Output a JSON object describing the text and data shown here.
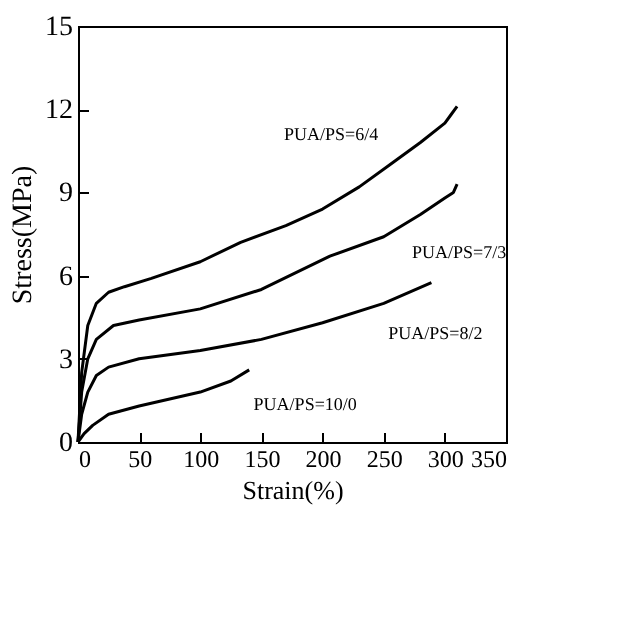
{
  "chart_data": {
    "type": "line",
    "xlabel": "Strain(%)",
    "ylabel": "Stress(MPa)",
    "xlim": [
      0,
      350
    ],
    "ylim": [
      0,
      15
    ],
    "xticks": [
      0,
      50,
      100,
      150,
      200,
      250,
      300,
      350
    ],
    "yticks": [
      0,
      3,
      6,
      9,
      12,
      15
    ],
    "grid": false,
    "legend": false,
    "marker": "none",
    "line_style": "solid",
    "series": [
      {
        "name": "PUA/PS=6/4",
        "color": "#000000",
        "x": [
          0,
          3,
          8,
          15,
          25,
          38,
          60,
          100,
          133,
          170,
          200,
          230,
          255,
          280,
          300,
          305,
          310
        ],
        "values": [
          0,
          2.5,
          4.2,
          5.0,
          5.4,
          5.6,
          5.9,
          6.5,
          7.2,
          7.8,
          8.4,
          9.2,
          10,
          10.8,
          11.5,
          11.8,
          12.1
        ]
      },
      {
        "name": "PUA/PS=7/3",
        "color": "#000000",
        "x": [
          0,
          3,
          8,
          15,
          29,
          50,
          100,
          150,
          206,
          250,
          280,
          300,
          307,
          310
        ],
        "values": [
          0,
          1.8,
          3.0,
          3.7,
          4.2,
          4.4,
          4.8,
          5.5,
          6.7,
          7.4,
          8.2,
          8.8,
          9.0,
          9.3
        ]
      },
      {
        "name": "PUA/PS=8/2",
        "color": "#000000",
        "x": [
          0,
          3,
          8,
          15,
          25,
          50,
          100,
          150,
          200,
          250,
          289
        ],
        "values": [
          0,
          1.0,
          1.8,
          2.4,
          2.7,
          3.0,
          3.3,
          3.7,
          4.3,
          5.0,
          5.75
        ]
      },
      {
        "name": "PUA/PS=10/0",
        "color": "#000000",
        "x": [
          0,
          5,
          12,
          25,
          50,
          75,
          100,
          125,
          140
        ],
        "values": [
          0,
          0.3,
          0.6,
          1.0,
          1.3,
          1.55,
          1.8,
          2.2,
          2.6
        ]
      }
    ]
  }
}
